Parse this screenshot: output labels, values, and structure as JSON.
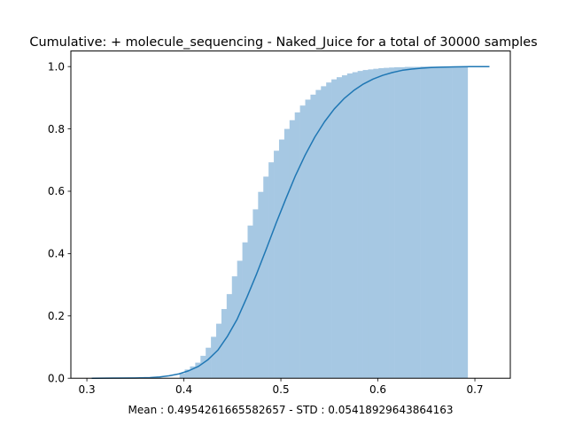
{
  "chart_data": {
    "type": "bar",
    "title": "Cumulative: + molecule_sequencing - Naked_Juice for a total of 30000 samples",
    "xlabel": "Mean : 0.4954261665582657 - STD : 0.05418929643864163",
    "ylabel": "",
    "xlim": [
      0.2835,
      0.7365
    ],
    "ylim": [
      0,
      1.05
    ],
    "xticks": [
      "0.3",
      "0.4",
      "0.5",
      "0.6",
      "0.7"
    ],
    "yticks": [
      "0.0",
      "0.2",
      "0.4",
      "0.6",
      "0.8",
      "1.0"
    ],
    "grid": false,
    "legend": "none",
    "colors": {
      "bars": "#a6c8e3",
      "line": "#1f77b4"
    },
    "histogram": {
      "bin_edges": [
        0.3955,
        0.4009,
        0.4063,
        0.4117,
        0.4171,
        0.4225,
        0.4279,
        0.4333,
        0.4387,
        0.4441,
        0.4495,
        0.4549,
        0.4603,
        0.4657,
        0.4711,
        0.4765,
        0.4819,
        0.4873,
        0.4927,
        0.4981,
        0.5035,
        0.5089,
        0.5143,
        0.5197,
        0.5251,
        0.5305,
        0.5359,
        0.5413,
        0.5467,
        0.5521,
        0.5575,
        0.5629,
        0.5683,
        0.5737,
        0.5791,
        0.5845,
        0.5899,
        0.5953,
        0.6007,
        0.6061,
        0.6115,
        0.6169,
        0.6223,
        0.6277,
        0.6331,
        0.6385,
        0.6439,
        0.6493,
        0.6547,
        0.6601,
        0.6655,
        0.6709,
        0.6763,
        0.6817,
        0.6871,
        0.6925
      ],
      "values": [
        0.015,
        0.028,
        0.038,
        0.05,
        0.072,
        0.098,
        0.133,
        0.175,
        0.222,
        0.27,
        0.327,
        0.377,
        0.436,
        0.49,
        0.542,
        0.598,
        0.647,
        0.693,
        0.73,
        0.766,
        0.8,
        0.828,
        0.853,
        0.875,
        0.894,
        0.91,
        0.925,
        0.937,
        0.949,
        0.959,
        0.966,
        0.972,
        0.978,
        0.982,
        0.986,
        0.989,
        0.991,
        0.993,
        0.995,
        0.996,
        0.997,
        0.998,
        0.998,
        0.999,
        0.999,
        0.999,
        1.0,
        1.0,
        1.0,
        1.0,
        1.0,
        1.0,
        1.0,
        1.0,
        1.0
      ]
    },
    "cdf_line": {
      "x": [
        0.305,
        0.33,
        0.35,
        0.365,
        0.375,
        0.385,
        0.395,
        0.405,
        0.415,
        0.425,
        0.435,
        0.445,
        0.455,
        0.465,
        0.475,
        0.485,
        0.495,
        0.505,
        0.515,
        0.525,
        0.535,
        0.545,
        0.555,
        0.565,
        0.575,
        0.585,
        0.595,
        0.605,
        0.615,
        0.625,
        0.635,
        0.645,
        0.655,
        0.665,
        0.68,
        0.695,
        0.715
      ],
      "y": [
        0.0,
        0.0005,
        0.001,
        0.002,
        0.004,
        0.008,
        0.014,
        0.024,
        0.038,
        0.06,
        0.09,
        0.135,
        0.19,
        0.26,
        0.335,
        0.415,
        0.497,
        0.575,
        0.65,
        0.716,
        0.774,
        0.823,
        0.864,
        0.897,
        0.923,
        0.944,
        0.96,
        0.972,
        0.981,
        0.988,
        0.992,
        0.995,
        0.997,
        0.998,
        0.999,
        1.0,
        1.0
      ]
    }
  }
}
